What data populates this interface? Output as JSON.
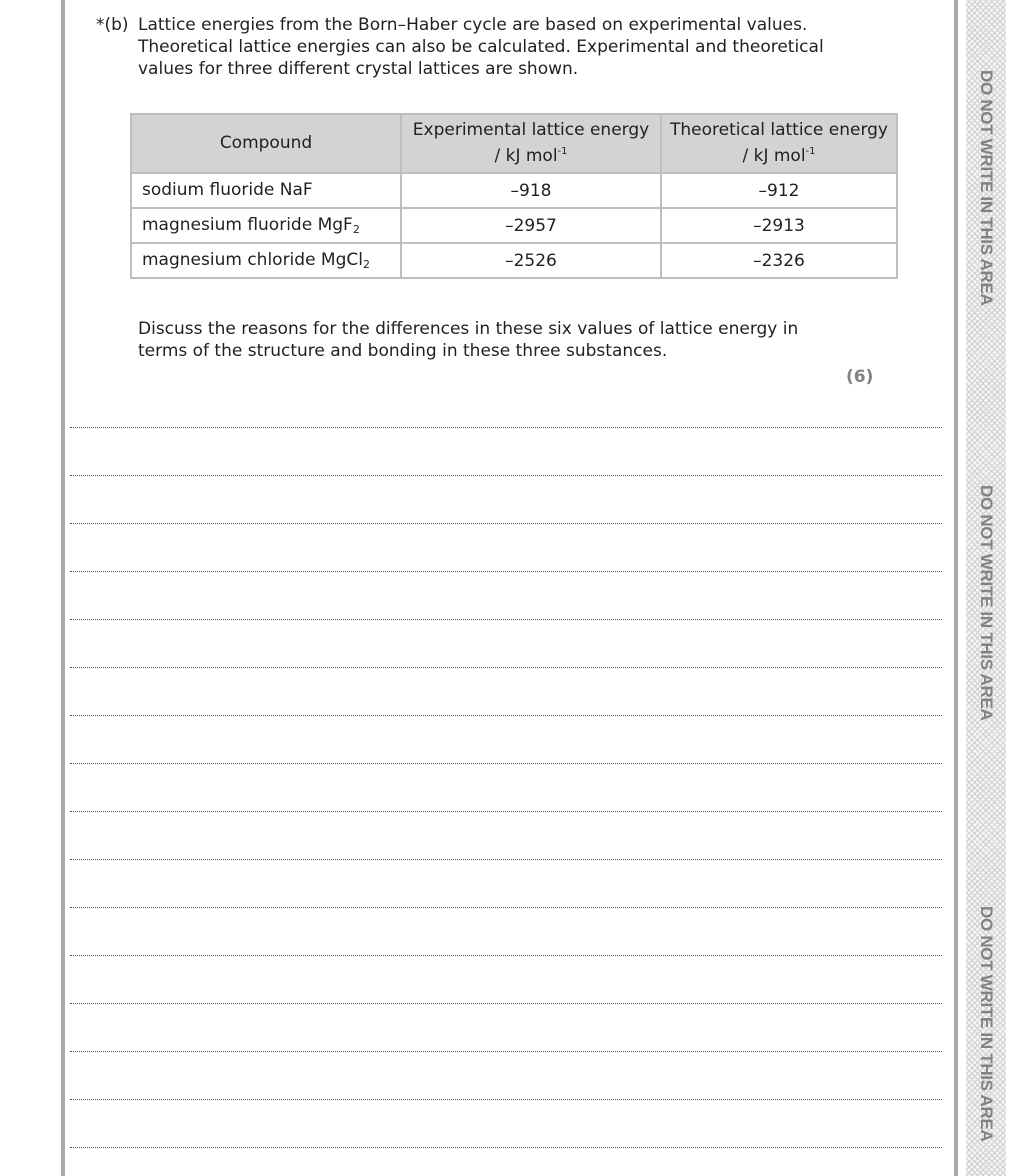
{
  "question": {
    "label": "*(b)",
    "text": "Lattice energies from the Born–Haber cycle are based on experimental values. Theoretical lattice energies can also be calculated. Experimental and theoretical values for three different crystal lattices are shown."
  },
  "table": {
    "headers": {
      "compound": "Compound",
      "experimental": "Experimental lattice energy",
      "theoretical": "Theoretical lattice energy",
      "unit": "/ kJ mol",
      "unit_exp": "-1"
    },
    "rows": [
      {
        "name": "sodium fluoride NaF",
        "sub": "",
        "experimental": "–918",
        "theoretical": "–912"
      },
      {
        "name": "magnesium fluoride MgF",
        "sub": "2",
        "experimental": "–2957",
        "theoretical": "–2913"
      },
      {
        "name": "magnesium chloride MgCl",
        "sub": "2",
        "experimental": "–2526",
        "theoretical": "–2326"
      }
    ]
  },
  "prompt": "Discuss the reasons for the differences in these six values of lattice energy in terms of the structure and bonding in these three substances.",
  "marks": "(6)",
  "margin_warning": "DO NOT WRITE IN THIS AREA",
  "colors": {
    "margin_text": "#808285",
    "rule": "#a7a9ac",
    "table_header": "#d1d3d4"
  }
}
